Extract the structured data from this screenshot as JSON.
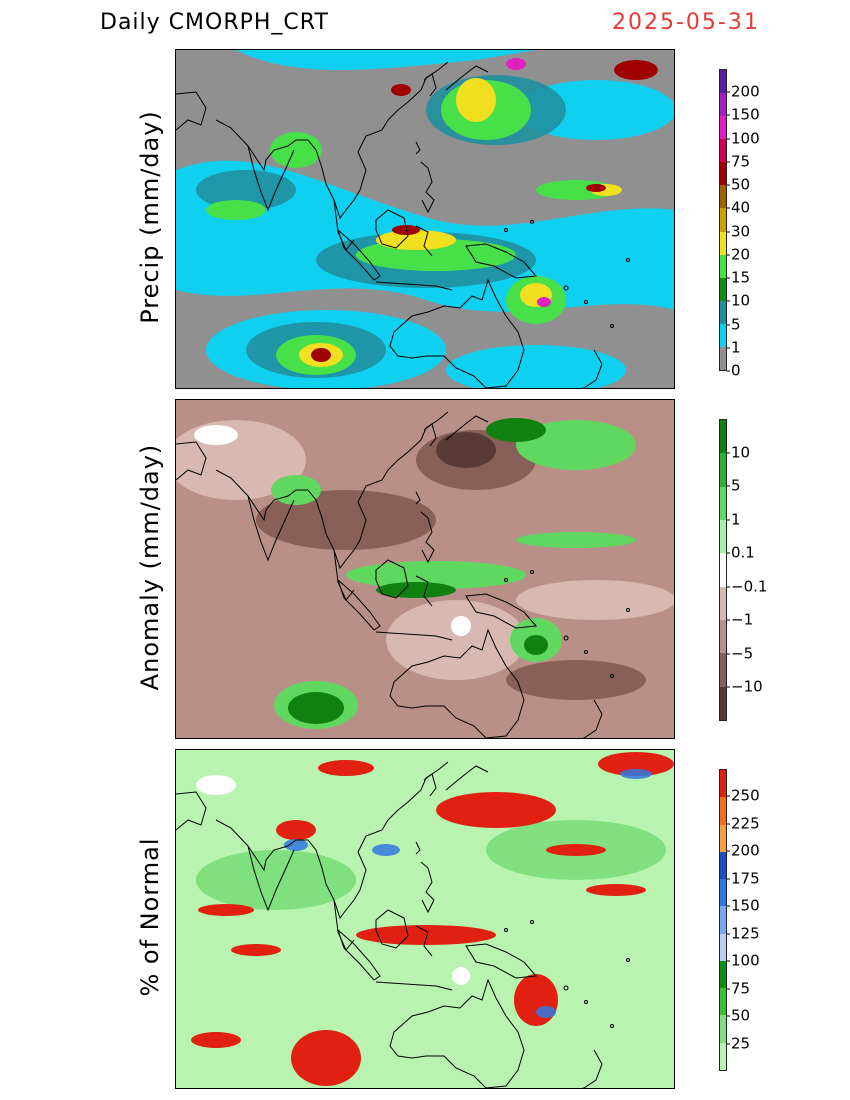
{
  "header": {
    "title": "Daily  CMORPH_CRT",
    "date": "2025-05-31"
  },
  "panels": [
    {
      "id": "precip",
      "ylabel": "Precip  (mm/day)",
      "colorbar": {
        "colors": [
          "#5a1fa0",
          "#a020c0",
          "#e020c0",
          "#d0005a",
          "#a00000",
          "#a06000",
          "#d0a000",
          "#f0e020",
          "#48e048",
          "#109010",
          "#2090a0",
          "#10d0f0",
          "#909090"
        ],
        "labels": [
          "200",
          "150",
          "100",
          "75",
          "50",
          "40",
          "30",
          "20",
          "15",
          "10",
          "5",
          "1",
          "0"
        ]
      }
    },
    {
      "id": "anomaly",
      "ylabel": "Anomaly  (mm/day)",
      "colorbar": {
        "colors": [
          "#108010",
          "#30b030",
          "#60d860",
          "#a8f0a8",
          "#ffffff",
          "#d8b8b0",
          "#b89088",
          "#886058",
          "#5a3a34"
        ],
        "labels": [
          "10",
          "5",
          "1",
          "0.1",
          "−0.1",
          "−1",
          "−5",
          "−10"
        ]
      }
    },
    {
      "id": "pct_normal",
      "ylabel": "%  of  Normal",
      "colorbar": {
        "colors": [
          "#e02010",
          "#f07020",
          "#f0a040",
          "#1850c0",
          "#3078e0",
          "#78a8f0",
          "#b8d0f8",
          "#109010",
          "#38c038",
          "#80e080",
          "#b8f4b0"
        ],
        "labels": [
          "250",
          "225",
          "200",
          "175",
          "150",
          "125",
          "100",
          "75",
          "50",
          "25"
        ]
      }
    }
  ]
}
